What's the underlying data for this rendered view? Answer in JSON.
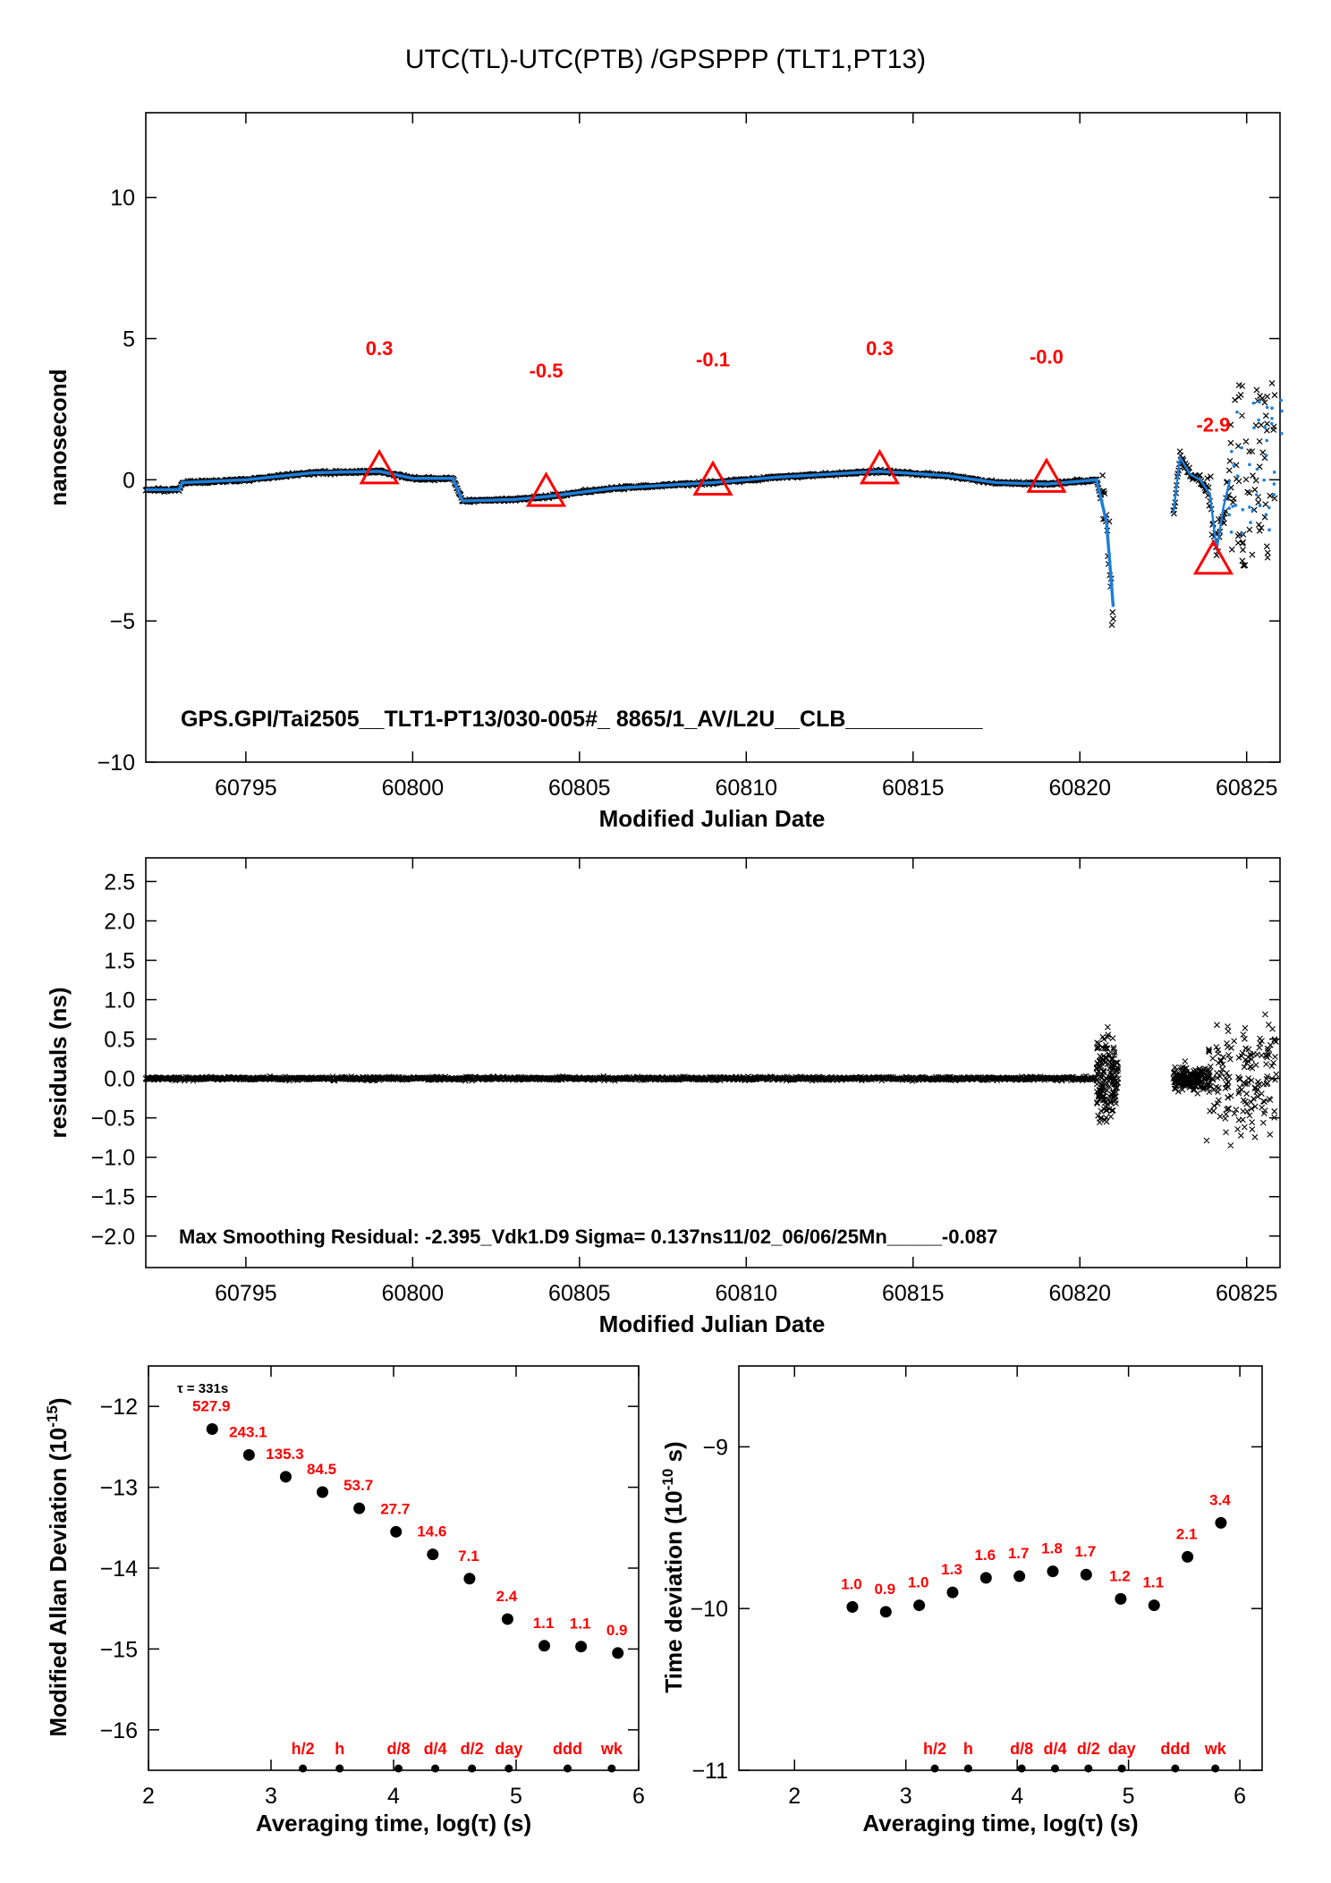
{
  "chart_data": [
    {
      "type": "scatter",
      "title": "UTC(TL)-UTC(PTB)  /GPSPPP  (TLT1,PT13)",
      "xlabel": "Modified Julian Date",
      "ylabel": "nanosecond",
      "xlim": [
        60792,
        60826
      ],
      "ylim": [
        -10,
        13
      ],
      "xticks": [
        60795,
        60800,
        60805,
        60810,
        60815,
        60820,
        60825
      ],
      "yticks": [
        -10,
        -5,
        0,
        5,
        10
      ],
      "annotation": "GPS.GPI/Tai2505__TLT1-PT13/030-005#_  8865/1_AV/L2U__CLB___________",
      "colors": {
        "smoothed": "#1e7fd8",
        "raw": "#000000",
        "marker": "#ff0000"
      },
      "segments": [
        {
          "x": 60792.0,
          "y": -0.35
        },
        {
          "x": 60793.0,
          "y": -0.35
        },
        {
          "x": 60793.1,
          "y": -0.1
        },
        {
          "x": 60795.0,
          "y": 0.0
        },
        {
          "x": 60797.0,
          "y": 0.25
        },
        {
          "x": 60799.0,
          "y": 0.3
        },
        {
          "x": 60800.0,
          "y": 0.05
        },
        {
          "x": 60801.2,
          "y": 0.05
        },
        {
          "x": 60801.5,
          "y": -0.75
        },
        {
          "x": 60803.0,
          "y": -0.7
        },
        {
          "x": 60804.0,
          "y": -0.6
        },
        {
          "x": 60806.0,
          "y": -0.3
        },
        {
          "x": 60809.0,
          "y": -0.1
        },
        {
          "x": 60811.0,
          "y": 0.1
        },
        {
          "x": 60814.0,
          "y": 0.3
        },
        {
          "x": 60816.0,
          "y": 0.15
        },
        {
          "x": 60817.5,
          "y": -0.1
        },
        {
          "x": 60819.0,
          "y": -0.15
        },
        {
          "x": 60820.5,
          "y": 0.0
        },
        {
          "x": 60820.8,
          "y": -1.5
        },
        {
          "x": 60821.0,
          "y": -4.5
        }
      ],
      "segments2": [
        {
          "x": 60822.8,
          "y": -1.2
        },
        {
          "x": 60823.0,
          "y": 0.8
        },
        {
          "x": 60823.3,
          "y": 0.2
        },
        {
          "x": 60823.6,
          "y": 0.0
        },
        {
          "x": 60823.9,
          "y": -0.5
        },
        {
          "x": 60824.1,
          "y": -2.5
        },
        {
          "x": 60824.3,
          "y": -1.0
        },
        {
          "x": 60824.5,
          "y": 0.0
        }
      ],
      "markers": [
        {
          "x": 60799,
          "y": 0.3,
          "label": "0.3"
        },
        {
          "x": 60804,
          "y": -0.5,
          "label": "-0.5"
        },
        {
          "x": 60809,
          "y": -0.1,
          "label": "-0.1"
        },
        {
          "x": 60814,
          "y": 0.3,
          "label": "0.3"
        },
        {
          "x": 60819,
          "y": -0.0,
          "label": "-0.0"
        },
        {
          "x": 60824,
          "y": -2.9,
          "label": "-2.9"
        }
      ]
    },
    {
      "type": "scatter",
      "xlabel": "Modified Julian Date",
      "ylabel": "residuals (ns)",
      "xlim": [
        60792,
        60826
      ],
      "ylim": [
        -2.4,
        2.8
      ],
      "xticks": [
        60795,
        60800,
        60805,
        60810,
        60815,
        60820,
        60825
      ],
      "yticks": [
        -2.0,
        -1.5,
        -1.0,
        -0.5,
        0.0,
        0.5,
        1.0,
        1.5,
        2.0,
        2.5
      ],
      "ytick_labels": [
        "−2.0",
        "−1.5",
        "−1.0",
        "−0.5",
        "0.0",
        "0.5",
        "1.0",
        "1.5",
        "2.0",
        "2.5"
      ],
      "annotation": "Max Smoothing Residual: -2.395_Vdk1.D9  Sigma= 0.137ns11/02_06/06/25Mn_____-0.087"
    },
    {
      "type": "scatter",
      "xlabel": "Averaging time, log(τ) (s)",
      "ylabel": "Modified Allan Deviation (10",
      "ylabel_sup": "-15",
      "ylabel_end": ")",
      "tau_note": "τ = 331s",
      "xlim": [
        2,
        6
      ],
      "ylim": [
        -16.5,
        -11.5
      ],
      "xticks": [
        2,
        3,
        4,
        5,
        6
      ],
      "yticks": [
        -16,
        -15,
        -14,
        -13,
        -12
      ],
      "ytick_labels": [
        "−16",
        "−15",
        "−14",
        "−13",
        "−12"
      ],
      "x": [
        2.52,
        2.82,
        3.12,
        3.42,
        3.72,
        4.02,
        4.32,
        4.62,
        4.93,
        5.23,
        5.53,
        5.83
      ],
      "y": [
        -12.28,
        -12.6,
        -12.87,
        -13.06,
        -13.26,
        -13.55,
        -13.83,
        -14.13,
        -14.63,
        -14.96,
        -14.97,
        -15.05
      ],
      "labels": [
        "527.9",
        "243.1",
        "135.3",
        "84.5",
        "53.7",
        "27.7",
        "14.6",
        "7.1",
        "2.4",
        "1.1",
        "1.1",
        "0.9"
      ],
      "period_marks": [
        {
          "x": 3.26,
          "label": "h/2"
        },
        {
          "x": 3.56,
          "label": "h"
        },
        {
          "x": 4.04,
          "label": "d/8"
        },
        {
          "x": 4.34,
          "label": "d/4"
        },
        {
          "x": 4.64,
          "label": "d/2"
        },
        {
          "x": 4.94,
          "label": "day"
        },
        {
          "x": 5.42,
          "label": "ddd"
        },
        {
          "x": 5.78,
          "label": "wk"
        }
      ]
    },
    {
      "type": "scatter",
      "xlabel": "Averaging time, log(τ) (s)",
      "ylabel": "Time deviation (10",
      "ylabel_sup": "-10",
      "ylabel_end": " s)",
      "xlim": [
        1.5,
        6.2
      ],
      "ylim": [
        -11,
        -8.5
      ],
      "xticks": [
        2,
        3,
        4,
        5,
        6
      ],
      "yticks": [
        -11,
        -10,
        -9
      ],
      "ytick_labels": [
        "−11",
        "−10",
        "−9"
      ],
      "x": [
        2.52,
        2.82,
        3.12,
        3.42,
        3.72,
        4.02,
        4.32,
        4.62,
        4.93,
        5.23,
        5.53,
        5.83
      ],
      "y": [
        -9.99,
        -10.02,
        -9.98,
        -9.9,
        -9.81,
        -9.8,
        -9.77,
        -9.79,
        -9.94,
        -9.98,
        -9.68,
        -9.47
      ],
      "labels": [
        "1.0",
        "0.9",
        "1.0",
        "1.3",
        "1.6",
        "1.7",
        "1.8",
        "1.7",
        "1.2",
        "1.1",
        "2.1",
        "3.4"
      ],
      "period_marks": [
        {
          "x": 3.26,
          "label": "h/2"
        },
        {
          "x": 3.56,
          "label": "h"
        },
        {
          "x": 4.04,
          "label": "d/8"
        },
        {
          "x": 4.34,
          "label": "d/4"
        },
        {
          "x": 4.64,
          "label": "d/2"
        },
        {
          "x": 4.94,
          "label": "day"
        },
        {
          "x": 5.42,
          "label": "ddd"
        },
        {
          "x": 5.78,
          "label": "wk"
        }
      ]
    }
  ]
}
